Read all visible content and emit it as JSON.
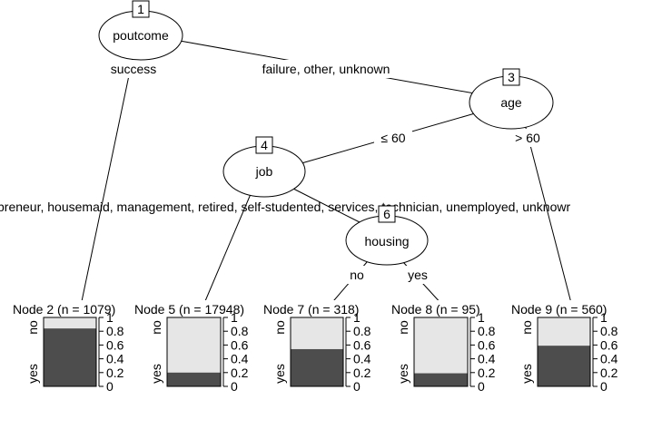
{
  "colors": {
    "dark": "#4d4d4d",
    "light": "#e6e6e6",
    "line": "#000000",
    "background": "#ffffff"
  },
  "nodes": {
    "n1": {
      "id": "1",
      "label": "poutcome"
    },
    "n3": {
      "id": "3",
      "label": "age"
    },
    "n4": {
      "id": "4",
      "label": "job"
    },
    "n6": {
      "id": "6",
      "label": "housing"
    }
  },
  "edges": {
    "n1_left": "success",
    "n1_right": "failure, other, unknown",
    "n3_left": "≤ 60",
    "n3_right": "> 60",
    "n4_split": "preneur, housemaid, management, retired, self-studented, services, technician, unemployed, unknowr",
    "n6_left": "no",
    "n6_right": "yes"
  },
  "leaf_axis": {
    "cat_top": "no",
    "cat_bottom": "yes",
    "ticks": [
      "0",
      "0.2",
      "0.4",
      "0.6",
      "0.8",
      "1"
    ],
    "tick_values": [
      0,
      0.2,
      0.4,
      0.6,
      0.8,
      1
    ]
  },
  "leaves": [
    {
      "key": "l2",
      "title": "Node 2 (n = 1079)",
      "yes_fraction": 0.84
    },
    {
      "key": "l5",
      "title": "Node 5 (n = 17948)",
      "yes_fraction": 0.2
    },
    {
      "key": "l7",
      "title": "Node 7 (n = 318)",
      "yes_fraction": 0.54
    },
    {
      "key": "l8",
      "title": "Node 8 (n = 95)",
      "yes_fraction": 0.19
    },
    {
      "key": "l9",
      "title": "Node 9 (n = 560)",
      "yes_fraction": 0.59
    }
  ]
}
